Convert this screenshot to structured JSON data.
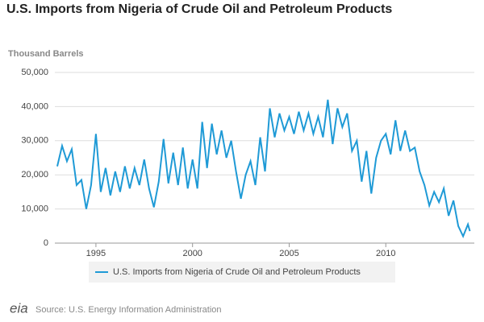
{
  "chart_data": {
    "type": "line",
    "title": "U.S. Imports from Nigeria of Crude Oil and Petroleum Products",
    "y_axis_label": "Thousand Barrels",
    "x": [
      1993.0,
      1993.25,
      1993.5,
      1993.75,
      1994.0,
      1994.25,
      1994.5,
      1994.75,
      1995.0,
      1995.25,
      1995.5,
      1995.75,
      1996.0,
      1996.25,
      1996.5,
      1996.75,
      1997.0,
      1997.25,
      1997.5,
      1997.75,
      1998.0,
      1998.25,
      1998.5,
      1998.75,
      1999.0,
      1999.25,
      1999.5,
      1999.75,
      2000.0,
      2000.25,
      2000.5,
      2000.75,
      2001.0,
      2001.25,
      2001.5,
      2001.75,
      2002.0,
      2002.25,
      2002.5,
      2002.75,
      2003.0,
      2003.25,
      2003.5,
      2003.75,
      2004.0,
      2004.25,
      2004.5,
      2004.75,
      2005.0,
      2005.25,
      2005.5,
      2005.75,
      2006.0,
      2006.25,
      2006.5,
      2006.75,
      2007.0,
      2007.25,
      2007.5,
      2007.75,
      2008.0,
      2008.25,
      2008.5,
      2008.75,
      2009.0,
      2009.25,
      2009.5,
      2009.75,
      2010.0,
      2010.25,
      2010.5,
      2010.75,
      2011.0,
      2011.25,
      2011.5,
      2011.75,
      2012.0,
      2012.25,
      2012.5,
      2012.75,
      2013.0,
      2013.25,
      2013.5,
      2013.75,
      2014.0,
      2014.25,
      2014.35
    ],
    "series": [
      {
        "name": "U.S. Imports from Nigeria of Crude Oil and Petroleum Products",
        "color": "#1f9ad6",
        "values": [
          22500,
          28500,
          24000,
          27500,
          17000,
          18500,
          10000,
          17000,
          32000,
          15000,
          22000,
          14000,
          21000,
          15000,
          22500,
          16000,
          22000,
          17000,
          24500,
          16000,
          10500,
          18000,
          30500,
          17500,
          26500,
          17000,
          28000,
          16000,
          24500,
          16000,
          35500,
          22000,
          35000,
          26000,
          33000,
          25000,
          30000,
          21000,
          13000,
          20000,
          24000,
          17000,
          31000,
          21000,
          39500,
          31000,
          38000,
          33000,
          37000,
          32000,
          38500,
          33000,
          38000,
          32000,
          37000,
          31000,
          42000,
          29000,
          39500,
          34000,
          38000,
          27000,
          30000,
          18000,
          27000,
          14500,
          25000,
          30000,
          32000,
          26000,
          36000,
          27000,
          33000,
          27000,
          28000,
          21000,
          17000,
          11000,
          15000,
          12000,
          16000,
          8000,
          12500,
          5000,
          2000,
          5500,
          3500
        ]
      }
    ],
    "xlim": [
      1992.875,
      2014.58
    ],
    "xticks": [
      1995,
      2000,
      2005,
      2010
    ],
    "ylim": [
      0,
      50000
    ],
    "yticks": [
      0,
      {
        "value": 10000,
        "label": "10,000"
      },
      {
        "value": 20000,
        "label": "20,000"
      },
      {
        "value": 30000,
        "label": "30,000"
      },
      {
        "value": 40000,
        "label": "40,000"
      },
      {
        "value": 50000,
        "label": "50,000"
      }
    ],
    "grid": true,
    "legend": "bottom",
    "logo": "eia",
    "source": "Source: U.S. Energy Information Administration"
  }
}
